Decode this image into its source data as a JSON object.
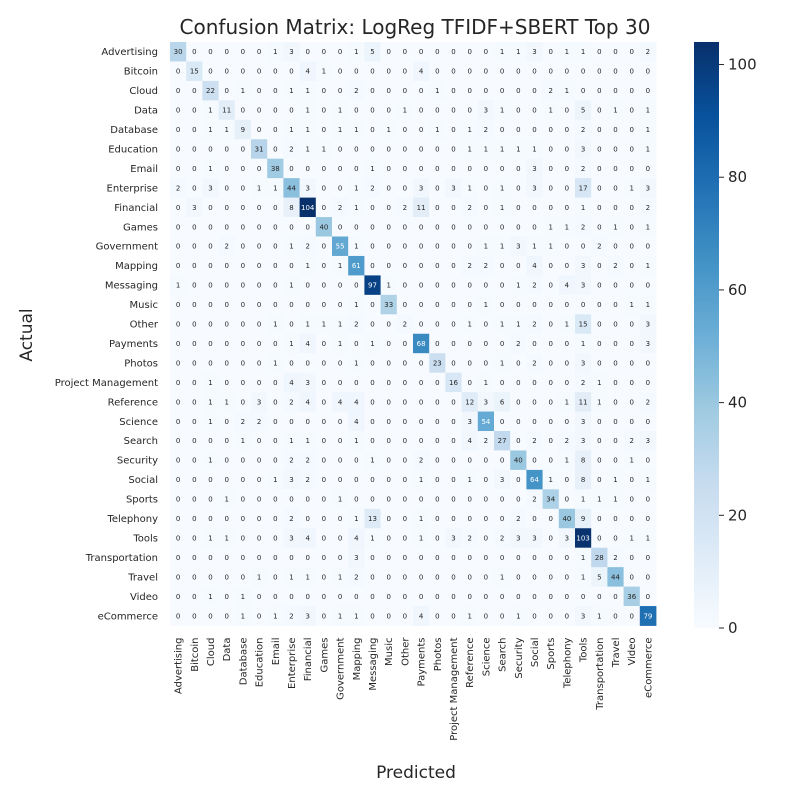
{
  "chart_data": {
    "type": "heatmap",
    "title": "Confusion Matrix: LogReg TFIDF+SBERT Top 30",
    "xlabel": "Predicted",
    "ylabel": "Actual",
    "labels": [
      "Advertising",
      "Bitcoin",
      "Cloud",
      "Data",
      "Database",
      "Education",
      "Email",
      "Enterprise",
      "Financial",
      "Games",
      "Government",
      "Mapping",
      "Messaging",
      "Music",
      "Other",
      "Payments",
      "Photos",
      "Project Management",
      "Reference",
      "Science",
      "Search",
      "Security",
      "Social",
      "Sports",
      "Telephony",
      "Tools",
      "Transportation",
      "Travel",
      "Video",
      "eCommerce"
    ],
    "matrix": [
      [
        30,
        0,
        0,
        0,
        0,
        0,
        1,
        3,
        0,
        0,
        0,
        1,
        5,
        0,
        0,
        0,
        0,
        0,
        0,
        0,
        1,
        1,
        3,
        0,
        1,
        1,
        0,
        0,
        0,
        2
      ],
      [
        0,
        15,
        0,
        0,
        0,
        0,
        0,
        0,
        4,
        1,
        0,
        0,
        0,
        0,
        0,
        4,
        0,
        0,
        0,
        0,
        0,
        0,
        0,
        0,
        0,
        0,
        0,
        0,
        0,
        0
      ],
      [
        0,
        0,
        22,
        0,
        1,
        0,
        0,
        1,
        1,
        0,
        0,
        2,
        0,
        0,
        0,
        0,
        1,
        0,
        0,
        0,
        0,
        0,
        0,
        2,
        1,
        0,
        0,
        0,
        0,
        0
      ],
      [
        0,
        0,
        1,
        11,
        0,
        0,
        0,
        0,
        1,
        0,
        1,
        0,
        0,
        0,
        1,
        0,
        0,
        0,
        0,
        3,
        1,
        0,
        0,
        1,
        0,
        5,
        0,
        1,
        0,
        1
      ],
      [
        0,
        0,
        1,
        1,
        9,
        0,
        0,
        1,
        1,
        0,
        1,
        1,
        0,
        1,
        0,
        0,
        1,
        0,
        1,
        2,
        0,
        0,
        0,
        0,
        0,
        2,
        0,
        0,
        0,
        1
      ],
      [
        0,
        0,
        0,
        0,
        0,
        31,
        0,
        2,
        1,
        1,
        0,
        0,
        0,
        0,
        0,
        0,
        0,
        0,
        1,
        1,
        1,
        1,
        1,
        0,
        0,
        3,
        0,
        0,
        0,
        1
      ],
      [
        0,
        0,
        1,
        0,
        0,
        0,
        38,
        0,
        0,
        0,
        0,
        0,
        1,
        0,
        0,
        0,
        0,
        0,
        0,
        0,
        0,
        0,
        3,
        0,
        0,
        2,
        0,
        0,
        0,
        0
      ],
      [
        2,
        0,
        3,
        0,
        0,
        1,
        1,
        44,
        3,
        0,
        0,
        1,
        2,
        0,
        0,
        3,
        0,
        3,
        1,
        0,
        1,
        0,
        3,
        0,
        0,
        17,
        0,
        0,
        1,
        3
      ],
      [
        0,
        3,
        0,
        0,
        0,
        0,
        0,
        8,
        104,
        0,
        2,
        1,
        0,
        0,
        2,
        11,
        0,
        0,
        2,
        0,
        1,
        0,
        0,
        0,
        0,
        1,
        0,
        0,
        0,
        2
      ],
      [
        0,
        0,
        0,
        0,
        0,
        0,
        0,
        0,
        0,
        40,
        0,
        0,
        0,
        0,
        0,
        0,
        0,
        0,
        0,
        0,
        0,
        0,
        0,
        1,
        1,
        2,
        0,
        1,
        0,
        1
      ],
      [
        0,
        0,
        0,
        2,
        0,
        0,
        0,
        1,
        2,
        0,
        55,
        1,
        0,
        0,
        0,
        0,
        0,
        0,
        0,
        1,
        1,
        3,
        1,
        1,
        0,
        0,
        2,
        0,
        0,
        0
      ],
      [
        0,
        0,
        0,
        0,
        0,
        0,
        0,
        0,
        1,
        0,
        1,
        61,
        0,
        0,
        0,
        0,
        0,
        0,
        2,
        2,
        0,
        0,
        4,
        0,
        0,
        3,
        0,
        2,
        0,
        1
      ],
      [
        1,
        0,
        0,
        0,
        0,
        0,
        0,
        1,
        0,
        0,
        0,
        0,
        97,
        1,
        0,
        0,
        0,
        0,
        0,
        0,
        0,
        1,
        2,
        0,
        4,
        3,
        0,
        0,
        0,
        0
      ],
      [
        0,
        0,
        0,
        0,
        0,
        0,
        0,
        0,
        0,
        0,
        0,
        1,
        0,
        33,
        0,
        0,
        0,
        0,
        0,
        1,
        0,
        0,
        0,
        0,
        0,
        0,
        0,
        0,
        1,
        1
      ],
      [
        0,
        0,
        0,
        0,
        0,
        0,
        1,
        0,
        1,
        1,
        1,
        2,
        0,
        0,
        2,
        0,
        0,
        0,
        1,
        0,
        1,
        1,
        2,
        0,
        1,
        15,
        0,
        0,
        0,
        3
      ],
      [
        0,
        0,
        0,
        0,
        0,
        0,
        0,
        1,
        4,
        0,
        1,
        0,
        1,
        0,
        0,
        68,
        0,
        0,
        0,
        0,
        0,
        2,
        0,
        0,
        0,
        1,
        0,
        0,
        0,
        3
      ],
      [
        0,
        0,
        0,
        0,
        0,
        0,
        1,
        0,
        0,
        0,
        0,
        1,
        0,
        0,
        0,
        0,
        23,
        0,
        0,
        0,
        1,
        0,
        2,
        0,
        0,
        3,
        0,
        0,
        0,
        0
      ],
      [
        0,
        0,
        1,
        0,
        0,
        0,
        0,
        4,
        3,
        0,
        0,
        0,
        0,
        0,
        0,
        0,
        0,
        16,
        0,
        1,
        0,
        0,
        0,
        0,
        0,
        2,
        1,
        0,
        0,
        0
      ],
      [
        0,
        0,
        1,
        1,
        0,
        3,
        0,
        2,
        4,
        0,
        4,
        4,
        0,
        0,
        0,
        0,
        0,
        0,
        12,
        3,
        6,
        0,
        0,
        0,
        1,
        11,
        1,
        0,
        0,
        2
      ],
      [
        0,
        0,
        1,
        0,
        2,
        2,
        0,
        0,
        0,
        0,
        0,
        4,
        0,
        0,
        0,
        0,
        0,
        0,
        3,
        54,
        0,
        0,
        0,
        0,
        0,
        3,
        0,
        0,
        0,
        0
      ],
      [
        0,
        0,
        0,
        0,
        1,
        0,
        0,
        1,
        1,
        0,
        0,
        1,
        0,
        0,
        0,
        0,
        0,
        0,
        4,
        2,
        27,
        0,
        2,
        0,
        2,
        3,
        0,
        0,
        2,
        3
      ],
      [
        0,
        0,
        1,
        0,
        0,
        0,
        0,
        2,
        2,
        0,
        0,
        0,
        1,
        0,
        0,
        2,
        0,
        0,
        0,
        0,
        0,
        40,
        0,
        0,
        1,
        8,
        0,
        0,
        1,
        0
      ],
      [
        0,
        0,
        0,
        0,
        0,
        0,
        1,
        3,
        2,
        0,
        0,
        0,
        0,
        0,
        0,
        1,
        0,
        0,
        1,
        0,
        3,
        0,
        64,
        1,
        0,
        8,
        0,
        1,
        0,
        1
      ],
      [
        0,
        0,
        0,
        1,
        0,
        0,
        0,
        0,
        0,
        0,
        1,
        0,
        0,
        0,
        0,
        0,
        0,
        0,
        0,
        0,
        0,
        0,
        2,
        34,
        0,
        1,
        1,
        1,
        0,
        0
      ],
      [
        0,
        0,
        0,
        0,
        0,
        0,
        0,
        2,
        0,
        0,
        0,
        1,
        13,
        0,
        0,
        1,
        0,
        0,
        0,
        0,
        0,
        2,
        0,
        0,
        40,
        9,
        0,
        0,
        0,
        0
      ],
      [
        0,
        0,
        1,
        1,
        0,
        0,
        0,
        3,
        4,
        0,
        0,
        4,
        1,
        0,
        0,
        1,
        0,
        3,
        2,
        0,
        2,
        3,
        3,
        0,
        3,
        103,
        0,
        0,
        1,
        1
      ],
      [
        0,
        0,
        0,
        0,
        0,
        0,
        0,
        0,
        0,
        0,
        0,
        3,
        0,
        0,
        0,
        0,
        0,
        0,
        0,
        0,
        0,
        0,
        0,
        0,
        0,
        1,
        28,
        2,
        0,
        0
      ],
      [
        0,
        0,
        0,
        0,
        0,
        1,
        0,
        1,
        1,
        0,
        1,
        2,
        0,
        0,
        0,
        0,
        0,
        0,
        0,
        0,
        1,
        0,
        0,
        0,
        0,
        1,
        5,
        44,
        0,
        0
      ],
      [
        0,
        0,
        1,
        0,
        1,
        0,
        0,
        0,
        0,
        0,
        0,
        0,
        0,
        0,
        0,
        0,
        0,
        0,
        0,
        0,
        0,
        0,
        0,
        0,
        0,
        0,
        0,
        0,
        36,
        0
      ],
      [
        0,
        0,
        0,
        0,
        1,
        0,
        1,
        2,
        3,
        0,
        1,
        1,
        0,
        0,
        0,
        4,
        0,
        0,
        1,
        0,
        0,
        1,
        0,
        0,
        0,
        3,
        1,
        0,
        0,
        79
      ]
    ],
    "vmin": 0,
    "vmax": 104,
    "colorbar_ticks": [
      0,
      20,
      40,
      60,
      80,
      100
    ],
    "colormap": [
      "#f7fbff",
      "#deebf7",
      "#c6dbef",
      "#9ecae1",
      "#6baed6",
      "#4292c6",
      "#2171b5",
      "#08519c",
      "#08306b"
    ]
  }
}
